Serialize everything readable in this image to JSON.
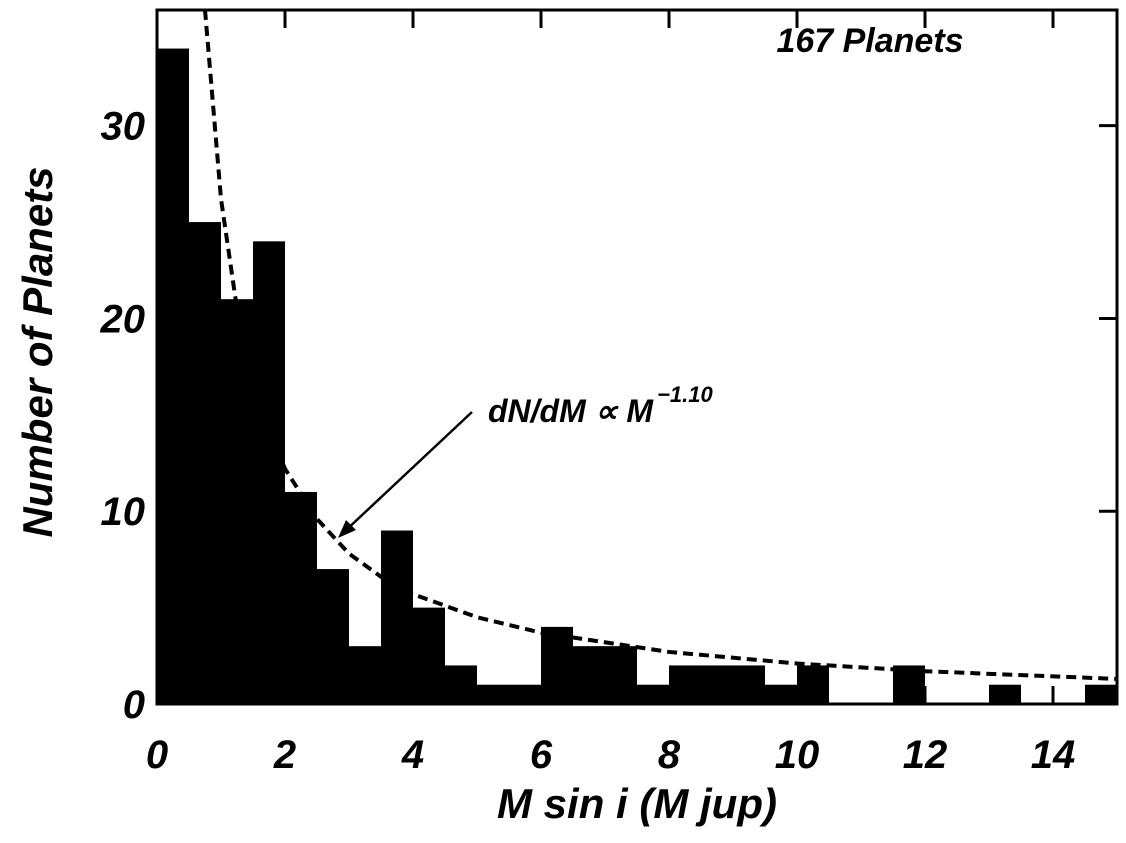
{
  "chart_data": {
    "type": "histogram",
    "annotation_count": "167 Planets",
    "annotation_fit": "dN/dM ∝ M",
    "annotation_fit_exponent": "−1.10",
    "x_label": "M sin i  (M jup)",
    "y_label": "Number of Planets",
    "bins": [
      0,
      0.5,
      1,
      1.5,
      2,
      2.5,
      3,
      3.5,
      4,
      4.5,
      5,
      5.5,
      6,
      6.5,
      7,
      7.5,
      8,
      8.5,
      9,
      9.5,
      10,
      10.5,
      11,
      11.5,
      12,
      12.5,
      13,
      13.5,
      14,
      14.5,
      15
    ],
    "values": [
      34,
      25,
      21,
      24,
      11,
      7,
      3,
      9,
      5,
      2,
      1,
      1,
      4,
      3,
      3,
      1,
      2,
      2,
      2,
      1,
      2,
      0,
      0,
      2,
      0,
      0,
      1,
      0,
      0,
      1
    ],
    "color": "#000000",
    "curve": {
      "x": [
        0.75,
        1,
        1.25,
        1.5,
        2,
        2.5,
        3,
        3.5,
        4,
        5,
        6,
        8,
        10,
        12,
        15
      ],
      "values": [
        36.0,
        26.2,
        20.5,
        16.8,
        12.2,
        9.6,
        7.8,
        6.6,
        5.7,
        4.5,
        3.7,
        2.7,
        2.1,
        1.7,
        1.3
      ]
    },
    "xlim": [
      0,
      15
    ],
    "xticks": [
      0,
      2,
      4,
      6,
      8,
      10,
      12,
      14
    ],
    "ylim": [
      0,
      36
    ],
    "yticks": [
      0,
      10,
      20,
      30
    ]
  }
}
